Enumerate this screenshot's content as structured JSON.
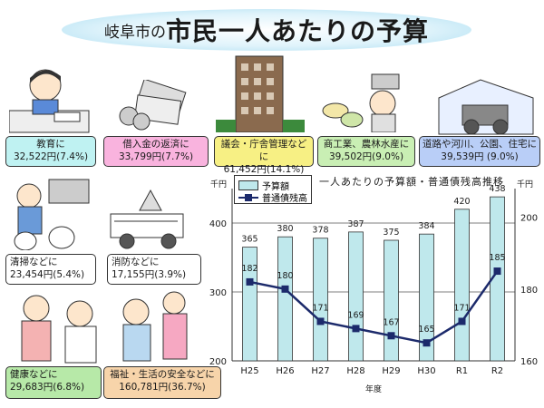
{
  "header": {
    "title_small": "岐阜市の",
    "title_big": "市民一人あたりの予算"
  },
  "categories": {
    "education": {
      "label": "教育に",
      "amount": "32,522円(7.4%)"
    },
    "debt": {
      "label": "借入金の返済に",
      "amount": "33,799円(7.7%)"
    },
    "council": {
      "label": "議会・庁舎管理などに",
      "amount": "61,452円(14.1%)"
    },
    "commerce": {
      "label": "商工業、農林水産に",
      "amount": "39,502円(9.0%)"
    },
    "roads": {
      "label": "道路や河川、公園、住宅に",
      "amount": "39,539円 (9.0%)"
    },
    "cleaning": {
      "label": "清掃などに",
      "amount": "23,454円(5.4%)"
    },
    "fire": {
      "label": "消防などに",
      "amount": "17,155円(3.9%)"
    },
    "health": {
      "label": "健康などに",
      "amount": "29,683円(6.8%)"
    },
    "welfare": {
      "label": "福祉・生活の安全などに",
      "amount": "160,781円(36.7%)"
    }
  },
  "colors": {
    "education": "#bff2f2",
    "debt": "#f9b3de",
    "council": "#f7f084",
    "commerce": "#c9efb4",
    "roads": "#b9cef7",
    "cleaning": "#ffffff",
    "fire": "#ffffff",
    "health": "#b7e9a8",
    "welfare": "#f7d4aa",
    "bar": "#bfe8ec",
    "line": "#1c2a6b"
  },
  "chart_data": {
    "type": "bar+line",
    "title": "一人あたりの予算額・普通債残高推移",
    "categories": [
      "H25",
      "H26",
      "H27",
      "H28",
      "H29",
      "H30",
      "R1",
      "R2"
    ],
    "series": [
      {
        "name": "予算額",
        "type": "bar",
        "axis": "left",
        "values": [
          365,
          380,
          378,
          387,
          375,
          384,
          420,
          438
        ]
      },
      {
        "name": "普通債残高",
        "type": "line",
        "axis": "right",
        "values": [
          182,
          180,
          171,
          169,
          167,
          165,
          171,
          185
        ]
      }
    ],
    "xlabel": "年度",
    "ylabel_left": "千円",
    "ylabel_right": "千円",
    "ylim_left": [
      200,
      450
    ],
    "yticks_left": [
      200,
      300,
      400
    ],
    "ylim_right": [
      160,
      208
    ],
    "yticks_right": [
      160,
      180,
      200
    ],
    "grid": true,
    "legend": "top-left"
  }
}
